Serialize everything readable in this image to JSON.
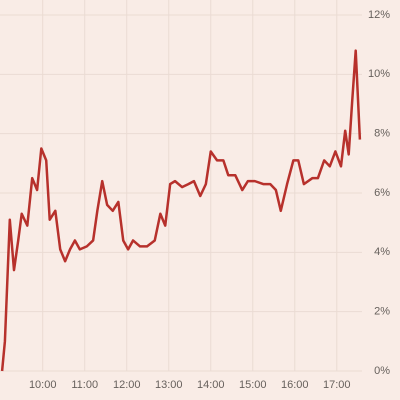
{
  "chart_data": {
    "type": "line",
    "x": [
      "09:02",
      "09:06",
      "09:13",
      "09:19",
      "09:25",
      "09:30",
      "09:38",
      "09:45",
      "09:52",
      "09:58",
      "10:05",
      "10:10",
      "10:18",
      "10:25",
      "10:32",
      "10:39",
      "10:46",
      "10:53",
      "11:03",
      "11:12",
      "11:18",
      "11:25",
      "11:32",
      "11:40",
      "11:48",
      "11:55",
      "12:02",
      "12:09",
      "12:19",
      "12:29",
      "12:40",
      "12:48",
      "12:55",
      "13:02",
      "13:09",
      "13:19",
      "13:28",
      "13:36",
      "13:45",
      "13:53",
      "14:00",
      "14:09",
      "14:18",
      "14:25",
      "14:35",
      "14:45",
      "14:53",
      "15:03",
      "15:15",
      "15:25",
      "15:33",
      "15:40",
      "15:49",
      "15:58",
      "16:05",
      "16:13",
      "16:25",
      "16:33",
      "16:42",
      "16:50",
      "16:58",
      "17:06",
      "17:12",
      "17:17",
      "17:22",
      "17:27",
      "17:33"
    ],
    "values": [
      0,
      1,
      5.1,
      3.4,
      4.4,
      5.3,
      4.9,
      6.5,
      6.1,
      7.5,
      7.1,
      5.1,
      5.4,
      4.1,
      3.7,
      4.1,
      4.4,
      4.1,
      4.2,
      4.4,
      5.4,
      6.4,
      5.6,
      5.4,
      5.7,
      4.4,
      4.1,
      4.4,
      4.2,
      4.2,
      4.4,
      5.3,
      4.9,
      6.3,
      6.4,
      6.2,
      6.3,
      6.4,
      5.9,
      6.3,
      7.4,
      7.1,
      7.1,
      6.6,
      6.6,
      6.1,
      6.4,
      6.4,
      6.3,
      6.3,
      6.1,
      5.4,
      6.3,
      7.1,
      7.1,
      6.3,
      6.5,
      6.5,
      7.1,
      6.9,
      7.4,
      6.9,
      8.1,
      7.3,
      9.1,
      10.8,
      7.8
    ],
    "color": "#b7312c",
    "xlim": [
      "08:59",
      "17:36"
    ],
    "xticks": [
      "10:00",
      "11:00",
      "12:00",
      "13:00",
      "14:00",
      "15:00",
      "16:00",
      "17:00"
    ],
    "ylim": [
      0,
      12
    ],
    "yticks": [
      {
        "value": 0,
        "label": "0%"
      },
      {
        "value": 2,
        "label": "2%"
      },
      {
        "value": 4,
        "label": "4%"
      },
      {
        "value": 6,
        "label": "6%"
      },
      {
        "value": 8,
        "label": "8%"
      },
      {
        "value": 10,
        "label": "10%"
      },
      {
        "value": 12,
        "label": "12%"
      }
    ],
    "grid": true
  }
}
